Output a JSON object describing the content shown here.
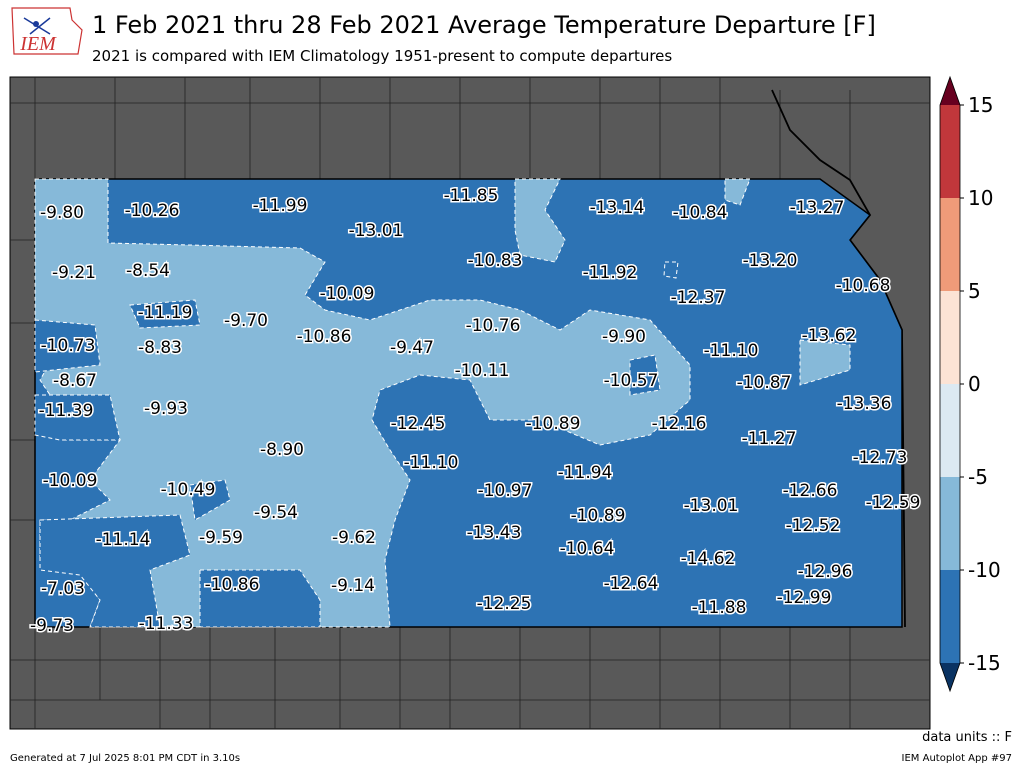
{
  "header": {
    "logo": "IEM",
    "title": "1 Feb 2021 thru 28 Feb 2021 Average Temperature Departure [F]",
    "subtitle": "2021 is compared with IEM Climatology 1951-present to compute departures"
  },
  "map": {
    "labels": [
      "-9.80",
      "-10.26",
      "-11.99",
      "-13.01",
      "-11.85",
      "-13.14",
      "-10.84",
      "-13.27",
      "-9.21",
      "-8.54",
      "-10.09",
      "-10.83",
      "-11.92",
      "-13.20",
      "-10.68",
      "-11.19",
      "-9.70",
      "-10.86",
      "-9.47",
      "-10.76",
      "-9.90",
      "-12.37",
      "-13.62",
      "-10.73",
      "-8.83",
      "-10.11",
      "-10.57",
      "-11.10",
      "-10.87",
      "-8.67",
      "-11.39",
      "-9.93",
      "-12.45",
      "-10.89",
      "-12.16",
      "-11.27",
      "-13.36",
      "-8.90",
      "-11.10",
      "-11.94",
      "-12.73",
      "-10.09",
      "-10.49",
      "-10.97",
      "-12.66",
      "-12.59",
      "-9.54",
      "-10.89",
      "-13.01",
      "-11.14",
      "-9.59",
      "-9.62",
      "-13.43",
      "-10.64",
      "-12.52",
      "-14.62",
      "-7.03",
      "-10.86",
      "-9.14",
      "-12.64",
      "-12.96",
      "-12.99",
      "-12.25",
      "-11.88",
      "-11.33",
      "-9.73"
    ]
  },
  "colorbar": {
    "ticks": [
      15,
      10,
      5,
      0,
      -5,
      -10,
      -15
    ],
    "colors": [
      "#c1373b",
      "#ef9b79",
      "#fce3d5",
      "#dce9f2",
      "#86b9d9",
      "#2d73b4"
    ],
    "over_color": "#67001f",
    "under_color": "#0a3363"
  },
  "footer": {
    "units": "data units :: F",
    "generated": "Generated at 7 Jul 2025 8:01 PM CDT in 3.10s",
    "app": "IEM Autoplot App #97"
  }
}
